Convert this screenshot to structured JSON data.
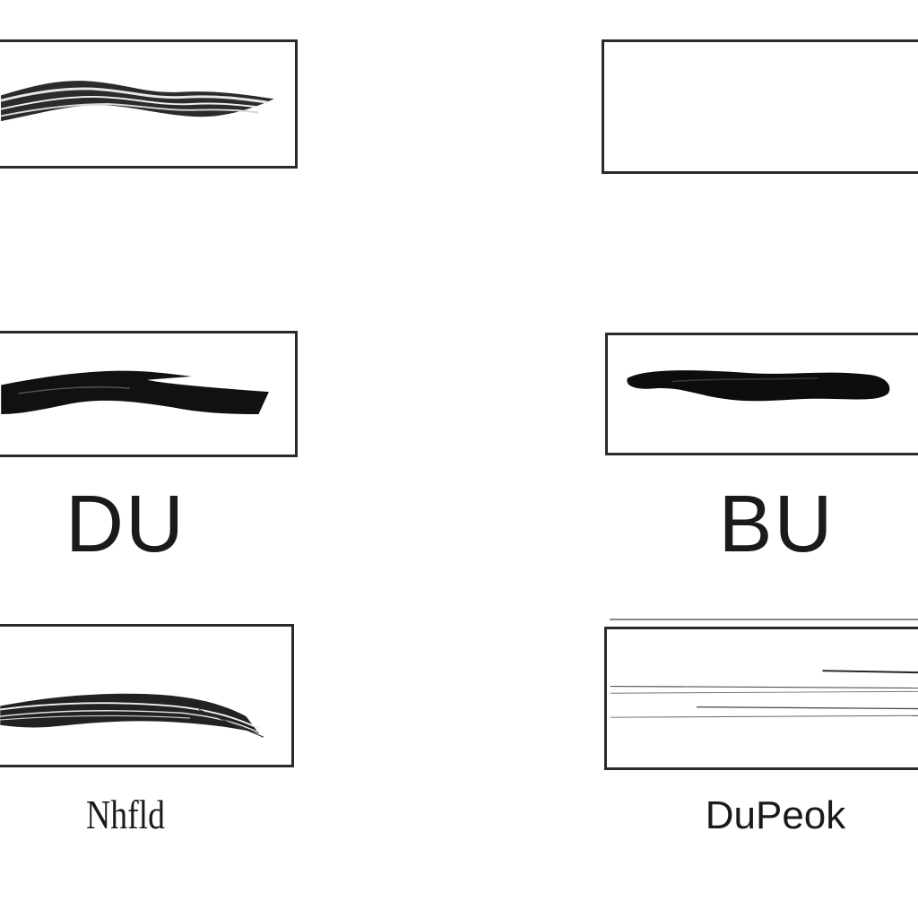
{
  "panels": [
    {
      "id": "top-left",
      "stroke": "wavy-ribbon"
    },
    {
      "id": "top-right",
      "stroke": "empty"
    },
    {
      "id": "middle-left",
      "stroke": "bold-brush"
    },
    {
      "id": "middle-right",
      "stroke": "rounded-brush"
    },
    {
      "id": "bottom-left",
      "stroke": "dry-brush"
    },
    {
      "id": "bottom-right",
      "stroke": "thin-lines"
    }
  ],
  "captions": {
    "middle_left": "DU",
    "middle_right": "BU",
    "bottom_left": "Nhfld",
    "bottom_right": "DuPeok"
  },
  "colors": {
    "ink": "#1a1a1a",
    "frame": "#2a2a2a",
    "background": "#ffffff"
  }
}
